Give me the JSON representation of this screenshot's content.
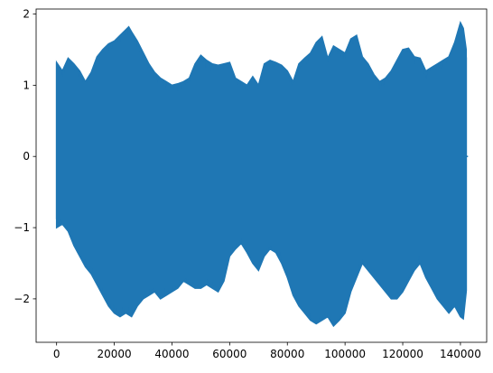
{
  "chart_data": {
    "type": "line",
    "title": "",
    "xlabel": "",
    "ylabel": "",
    "xlim": [
      -7100,
      149100
    ],
    "ylim": [
      -2.61,
      2.07
    ],
    "x_ticks": [
      0,
      20000,
      40000,
      60000,
      80000,
      100000,
      120000,
      140000
    ],
    "x_tick_labels": [
      "0",
      "20000",
      "40000",
      "60000",
      "80000",
      "100000",
      "120000",
      "140000"
    ],
    "y_ticks": [
      2,
      1,
      0,
      -1,
      -2
    ],
    "y_tick_labels": [
      "2",
      "1",
      "0",
      "−1",
      "−2"
    ],
    "grid": false,
    "legend": "none",
    "series": [
      {
        "color": "#1f77b4",
        "x_start": 0,
        "x_end": 142000,
        "upper_envelope": [
          [
            0,
            1.32
          ],
          [
            2000,
            1.2
          ],
          [
            4000,
            1.38
          ],
          [
            6000,
            1.3
          ],
          [
            8000,
            1.2
          ],
          [
            10000,
            1.05
          ],
          [
            12000,
            1.18
          ],
          [
            14000,
            1.4
          ],
          [
            16000,
            1.5
          ],
          [
            18000,
            1.58
          ],
          [
            20000,
            1.62
          ],
          [
            22000,
            1.7
          ],
          [
            24000,
            1.78
          ],
          [
            25000,
            1.82
          ],
          [
            26000,
            1.75
          ],
          [
            28000,
            1.62
          ],
          [
            30000,
            1.46
          ],
          [
            32000,
            1.3
          ],
          [
            34000,
            1.18
          ],
          [
            36000,
            1.1
          ],
          [
            38000,
            1.05
          ],
          [
            40000,
            1.0
          ],
          [
            42000,
            1.02
          ],
          [
            44000,
            1.05
          ],
          [
            46000,
            1.1
          ],
          [
            48000,
            1.3
          ],
          [
            50000,
            1.42
          ],
          [
            52000,
            1.35
          ],
          [
            54000,
            1.3
          ],
          [
            56000,
            1.28
          ],
          [
            58000,
            1.3
          ],
          [
            60000,
            1.32
          ],
          [
            62000,
            1.1
          ],
          [
            64000,
            1.05
          ],
          [
            66000,
            1.0
          ],
          [
            68000,
            1.12
          ],
          [
            70000,
            1.0
          ],
          [
            72000,
            1.3
          ],
          [
            74000,
            1.35
          ],
          [
            76000,
            1.32
          ],
          [
            78000,
            1.28
          ],
          [
            80000,
            1.2
          ],
          [
            82000,
            1.05
          ],
          [
            84000,
            1.3
          ],
          [
            86000,
            1.38
          ],
          [
            88000,
            1.45
          ],
          [
            90000,
            1.6
          ],
          [
            92000,
            1.68
          ],
          [
            94000,
            1.38
          ],
          [
            96000,
            1.55
          ],
          [
            98000,
            1.5
          ],
          [
            100000,
            1.45
          ],
          [
            102000,
            1.65
          ],
          [
            104000,
            1.7
          ],
          [
            106000,
            1.4
          ],
          [
            108000,
            1.3
          ],
          [
            110000,
            1.15
          ],
          [
            112000,
            1.05
          ],
          [
            114000,
            1.1
          ],
          [
            116000,
            1.2
          ],
          [
            118000,
            1.35
          ],
          [
            120000,
            1.5
          ],
          [
            122000,
            1.52
          ],
          [
            124000,
            1.4
          ],
          [
            126000,
            1.38
          ],
          [
            128000,
            1.2
          ],
          [
            130000,
            1.25
          ],
          [
            132000,
            1.3
          ],
          [
            134000,
            1.35
          ],
          [
            136000,
            1.4
          ],
          [
            138000,
            1.6
          ],
          [
            140000,
            1.88
          ],
          [
            141000,
            1.8
          ],
          [
            142000,
            1.5
          ]
        ],
        "lower_envelope": [
          [
            0,
            -1.0
          ],
          [
            2000,
            -0.95
          ],
          [
            4000,
            -1.05
          ],
          [
            6000,
            -1.25
          ],
          [
            8000,
            -1.4
          ],
          [
            10000,
            -1.55
          ],
          [
            12000,
            -1.65
          ],
          [
            14000,
            -1.8
          ],
          [
            16000,
            -1.95
          ],
          [
            18000,
            -2.1
          ],
          [
            20000,
            -2.2
          ],
          [
            22000,
            -2.25
          ],
          [
            24000,
            -2.2
          ],
          [
            26000,
            -2.25
          ],
          [
            28000,
            -2.1
          ],
          [
            30000,
            -2.0
          ],
          [
            32000,
            -1.95
          ],
          [
            34000,
            -1.9
          ],
          [
            36000,
            -2.0
          ],
          [
            38000,
            -1.95
          ],
          [
            40000,
            -1.9
          ],
          [
            42000,
            -1.85
          ],
          [
            44000,
            -1.75
          ],
          [
            46000,
            -1.8
          ],
          [
            48000,
            -1.85
          ],
          [
            50000,
            -1.85
          ],
          [
            52000,
            -1.8
          ],
          [
            54000,
            -1.85
          ],
          [
            56000,
            -1.9
          ],
          [
            58000,
            -1.75
          ],
          [
            60000,
            -1.4
          ],
          [
            62000,
            -1.3
          ],
          [
            64000,
            -1.22
          ],
          [
            66000,
            -1.35
          ],
          [
            68000,
            -1.5
          ],
          [
            70000,
            -1.6
          ],
          [
            72000,
            -1.4
          ],
          [
            74000,
            -1.3
          ],
          [
            76000,
            -1.35
          ],
          [
            78000,
            -1.5
          ],
          [
            80000,
            -1.7
          ],
          [
            82000,
            -1.95
          ],
          [
            84000,
            -2.1
          ],
          [
            86000,
            -2.2
          ],
          [
            88000,
            -2.3
          ],
          [
            90000,
            -2.35
          ],
          [
            92000,
            -2.3
          ],
          [
            94000,
            -2.25
          ],
          [
            96000,
            -2.38
          ],
          [
            98000,
            -2.3
          ],
          [
            100000,
            -2.2
          ],
          [
            102000,
            -1.9
          ],
          [
            104000,
            -1.7
          ],
          [
            106000,
            -1.5
          ],
          [
            108000,
            -1.6
          ],
          [
            110000,
            -1.7
          ],
          [
            112000,
            -1.8
          ],
          [
            114000,
            -1.9
          ],
          [
            116000,
            -2.0
          ],
          [
            118000,
            -2.0
          ],
          [
            120000,
            -1.9
          ],
          [
            122000,
            -1.75
          ],
          [
            124000,
            -1.6
          ],
          [
            126000,
            -1.5
          ],
          [
            128000,
            -1.7
          ],
          [
            130000,
            -1.85
          ],
          [
            132000,
            -2.0
          ],
          [
            134000,
            -2.1
          ],
          [
            136000,
            -2.2
          ],
          [
            138000,
            -2.1
          ],
          [
            140000,
            -2.25
          ],
          [
            141000,
            -2.28
          ],
          [
            142000,
            -1.9
          ]
        ]
      }
    ]
  }
}
